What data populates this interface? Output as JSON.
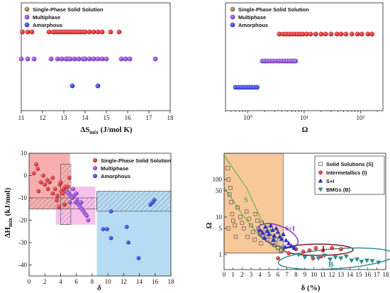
{
  "colors": {
    "red": "#c8181f",
    "darkred": "#7a0a10",
    "purple": "#7a2ec8",
    "blue": "#2230d8",
    "olive": "#7a6a2a",
    "salmon": "#f4a0a0",
    "pink": "#f6b8e8",
    "lightblue": "#aed8f2",
    "orange": "#f8c898",
    "green": "#5cb84a",
    "teal": "#2a8c8a"
  },
  "chart_data": [
    {
      "type": "scatter",
      "xlabel_main": "ΔS",
      "xlabel_sub": "mix",
      "xlabel_unit": " (J/mol K)",
      "xlim": [
        11,
        18
      ],
      "xticks": [
        "11",
        "12",
        "13",
        "14",
        "15",
        "16",
        "17",
        "18"
      ],
      "legend": [
        "Single-Phase Solid Solution",
        "Multiphase",
        "Amorphous"
      ],
      "series": [
        {
          "name": "Single-Phase Solid Solution",
          "row": 1,
          "x": [
            11.05,
            11.3,
            11.5,
            12.3,
            12.5,
            12.6,
            12.7,
            12.8,
            12.9,
            13.0,
            13.1,
            13.2,
            13.3,
            13.4,
            13.5,
            13.6,
            13.7,
            13.8,
            13.9,
            14.0,
            14.2,
            14.4,
            14.6,
            14.8,
            15.2,
            15.6
          ]
        },
        {
          "name": "Multiphase",
          "row": 2,
          "x": [
            11.0,
            11.3,
            11.6,
            12.4,
            12.7,
            12.9,
            13.1,
            13.2,
            13.3,
            13.5,
            13.7,
            13.9,
            14.0,
            14.2,
            14.4,
            14.6,
            14.8,
            15.0,
            15.7,
            15.9,
            16.1,
            17.3
          ]
        },
        {
          "name": "Amorphous",
          "row": 3,
          "x": [
            13.4,
            14.6
          ]
        }
      ]
    },
    {
      "type": "scatter",
      "xlabel": "Ω",
      "xscale": "log",
      "xlim": [
        0.4,
        250
      ],
      "xticks": [
        "10⁰",
        "10¹",
        "10²"
      ],
      "legend": [
        "Single-Phase Solid Solution",
        "Multiphase",
        "Amorphous"
      ],
      "series": [
        {
          "name": "Single-Phase Solid Solution",
          "row": 1,
          "x": [
            3.6,
            4.2,
            4.8,
            5.4,
            6.0,
            6.8,
            7.6,
            8.5,
            9.5,
            11,
            13,
            16,
            20,
            24,
            30,
            38,
            45,
            55,
            70,
            88,
            105,
            135,
            160
          ]
        },
        {
          "name": "Multiphase",
          "row": 2,
          "x": [
            1.8,
            2.0,
            2.2,
            2.5,
            2.8,
            3.2,
            3.6,
            4.0,
            4.5,
            5.0,
            5.5,
            6.0,
            6.5,
            7.0
          ]
        },
        {
          "name": "Amorphous",
          "row": 3,
          "x": [
            0.6,
            0.68,
            0.76,
            0.85,
            0.95,
            1.05,
            1.15,
            1.3,
            1.45
          ]
        }
      ]
    },
    {
      "type": "scatter",
      "xlabel": "δ",
      "ylabel_main": "ΔH",
      "ylabel_sub": "mix",
      "ylabel_unit": " (kJ/mol)",
      "xlim": [
        0,
        18
      ],
      "ylim": [
        -45,
        10
      ],
      "xticks": [
        "0",
        "2",
        "4",
        "6",
        "8",
        "10",
        "12",
        "14",
        "16",
        "18"
      ],
      "yticks": [
        "10",
        "0",
        "-10",
        "-20",
        "-30",
        "-40"
      ],
      "legend": [
        "Single-Phase Solid Solution",
        "Multiphase",
        "Amorphous"
      ],
      "series": [
        {
          "name": "Single-Phase Solid Solution",
          "points": [
            [
              0.9,
              5
            ],
            [
              1.1,
              3
            ],
            [
              0.6,
              1
            ],
            [
              1.8,
              0
            ],
            [
              1.5,
              -3
            ],
            [
              2.0,
              -4
            ],
            [
              2.3,
              -2
            ],
            [
              2.6,
              -3
            ],
            [
              3.0,
              -1
            ],
            [
              3.3,
              -6
            ],
            [
              3.0,
              -8
            ],
            [
              3.6,
              -9
            ],
            [
              3.5,
              -11
            ],
            [
              3.9,
              -4
            ],
            [
              4.1,
              -7
            ],
            [
              4.0,
              -3
            ],
            [
              4.4,
              -6
            ],
            [
              4.6,
              -5
            ],
            [
              2.4,
              -6
            ],
            [
              1.2,
              -7
            ],
            [
              4.5,
              -13
            ],
            [
              4.9,
              -5
            ],
            [
              5.1,
              -1
            ],
            [
              4.3,
              -8
            ],
            [
              3.8,
              -14
            ]
          ]
        },
        {
          "name": "Multiphase",
          "points": [
            [
              4.8,
              -7
            ],
            [
              5.0,
              -8
            ],
            [
              5.3,
              -9
            ],
            [
              5.5,
              -10
            ],
            [
              5.7,
              -9
            ],
            [
              5.9,
              -12
            ],
            [
              6.1,
              -11
            ],
            [
              6.3,
              -13
            ],
            [
              6.5,
              -14
            ],
            [
              6.7,
              -15
            ],
            [
              6.9,
              -16
            ],
            [
              7.1,
              -17
            ],
            [
              7.3,
              -18
            ],
            [
              6.6,
              -12
            ],
            [
              6.0,
              -8
            ],
            [
              5.6,
              -6
            ],
            [
              7.5,
              -20
            ],
            [
              5.2,
              -12
            ]
          ]
        },
        {
          "name": "Amorphous",
          "points": [
            [
              9.9,
              -24
            ],
            [
              9.4,
              -24
            ],
            [
              10.4,
              -16
            ],
            [
              10.4,
              -28
            ],
            [
              12.4,
              -23
            ],
            [
              12.6,
              -30
            ],
            [
              13.9,
              -37
            ],
            [
              15.4,
              -13
            ],
            [
              15.7,
              -12
            ],
            [
              15.9,
              -11
            ]
          ]
        }
      ]
    },
    {
      "type": "scatter",
      "xlabel": "δ (%)",
      "ylabel": "Ω",
      "yscale": "log",
      "xlim": [
        0,
        18
      ],
      "ylim": [
        0.4,
        500
      ],
      "xticks": [
        "0",
        "1",
        "2",
        "3",
        "4",
        "5",
        "6",
        "7",
        "8",
        "9",
        "10",
        "11",
        "12",
        "13",
        "14",
        "15",
        "16",
        "17",
        "18"
      ],
      "yticks": [
        "100",
        "50",
        "10",
        "5",
        "1"
      ],
      "legend": [
        "Solid Solutions (S)",
        "Intermetallics (I)",
        "S+I",
        "BMGs (B)"
      ],
      "region_labels": [
        "S",
        "S+I",
        "I",
        "B"
      ],
      "series": [
        {
          "name": "Solid Solutions (S)",
          "marker": "open-square",
          "points": [
            [
              0.4,
              200
            ],
            [
              0.5,
              100
            ],
            [
              0.6,
              40
            ],
            [
              0.8,
              25
            ],
            [
              0.9,
              12
            ],
            [
              1.0,
              8
            ],
            [
              0.5,
              5
            ],
            [
              1.2,
              6
            ],
            [
              1.5,
              18
            ],
            [
              1.8,
              10
            ],
            [
              2.0,
              7
            ],
            [
              2.2,
              5
            ],
            [
              2.5,
              14
            ],
            [
              2.8,
              9
            ],
            [
              3.0,
              6
            ],
            [
              3.2,
              4
            ],
            [
              3.5,
              12
            ],
            [
              3.7,
              8
            ],
            [
              3.8,
              5
            ],
            [
              4.0,
              3.5
            ],
            [
              4.2,
              7
            ],
            [
              4.4,
              4
            ],
            [
              4.6,
              3
            ],
            [
              4.8,
              2.5
            ],
            [
              5.0,
              5
            ],
            [
              5.2,
              3
            ],
            [
              5.4,
              2
            ],
            [
              5.6,
              1.8
            ],
            [
              5.8,
              2.5
            ],
            [
              6.0,
              1.5
            ],
            [
              0.7,
              60
            ],
            [
              1.3,
              3
            ],
            [
              2.6,
              3
            ],
            [
              3.4,
              2.5
            ],
            [
              4.1,
              2
            ],
            [
              6.3,
              1.3
            ],
            [
              6.6,
              1.6
            ]
          ]
        },
        {
          "name": "Intermetallics (I)",
          "marker": "circle",
          "points": [
            [
              8.0,
              1.4
            ],
            [
              8.8,
              1.2
            ],
            [
              9.5,
              1.3
            ],
            [
              10.2,
              1.5
            ],
            [
              11.0,
              1.3
            ],
            [
              12.0,
              1.5
            ],
            [
              13.0,
              1.4
            ],
            [
              6.0,
              0.8
            ],
            [
              7.2,
              1.1
            ],
            [
              10.8,
              0.9
            ],
            [
              9.9,
              0.8
            ]
          ]
        },
        {
          "name": "S+I",
          "marker": "triangle",
          "points": [
            [
              4.0,
              4.5
            ],
            [
              4.3,
              3.8
            ],
            [
              4.6,
              5.5
            ],
            [
              4.8,
              4.2
            ],
            [
              5.0,
              3.5
            ],
            [
              5.2,
              6
            ],
            [
              5.4,
              4.5
            ],
            [
              5.6,
              3.2
            ],
            [
              5.8,
              5
            ],
            [
              6.0,
              4
            ],
            [
              6.2,
              3
            ],
            [
              6.4,
              2.6
            ],
            [
              6.6,
              3.5
            ],
            [
              6.9,
              2.4
            ],
            [
              7.2,
              2.0
            ],
            [
              7.5,
              1.7
            ],
            [
              7.8,
              1.5
            ],
            [
              5.5,
              2.5
            ],
            [
              4.5,
              2.8
            ],
            [
              6.8,
              1.6
            ]
          ]
        },
        {
          "name": "BMGs (B)",
          "marker": "triangle-down",
          "points": [
            [
              8.3,
              1.0
            ],
            [
              9.0,
              0.85
            ],
            [
              9.8,
              0.9
            ],
            [
              10.5,
              0.8
            ],
            [
              11.2,
              0.95
            ],
            [
              11.8,
              0.75
            ],
            [
              12.4,
              0.85
            ],
            [
              13.0,
              0.8
            ],
            [
              13.6,
              0.9
            ],
            [
              14.2,
              0.7
            ],
            [
              14.8,
              0.75
            ],
            [
              15.3,
              0.65
            ],
            [
              15.9,
              0.7
            ],
            [
              16.5,
              0.68
            ],
            [
              17.2,
              0.62
            ]
          ]
        }
      ]
    }
  ]
}
